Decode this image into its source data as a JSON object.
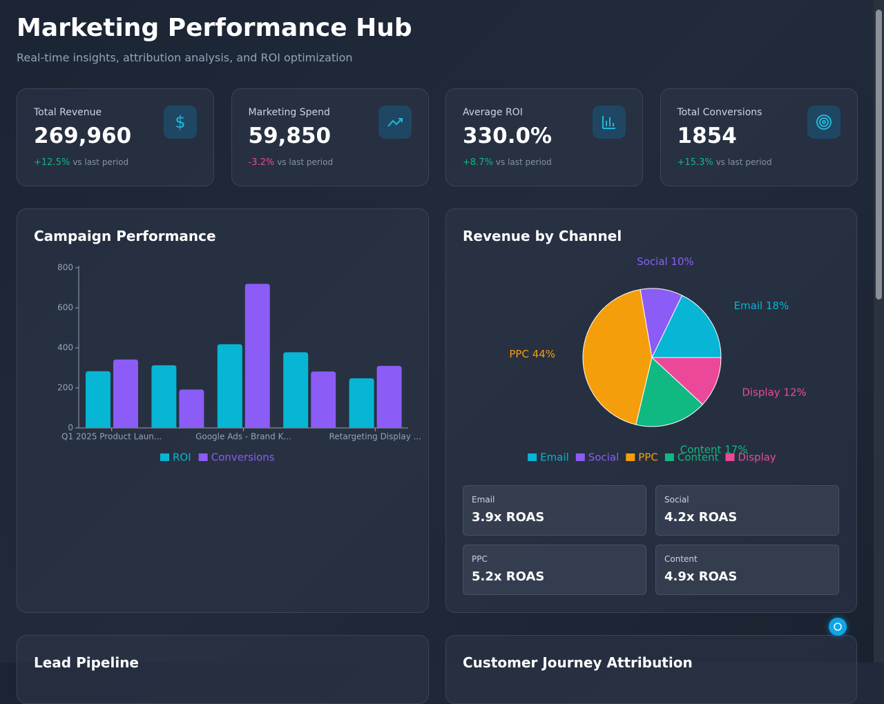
{
  "header": {
    "title": "Marketing Performance Hub",
    "subtitle": "Real-time insights, attribution analysis, and ROI optimization"
  },
  "kpis": [
    {
      "label": "Total Revenue",
      "value": "269,960",
      "change": "+12.5%",
      "note": "vs last period",
      "trend": "up"
    },
    {
      "label": "Marketing Spend",
      "value": "59,850",
      "change": "-3.2%",
      "note": "vs last period",
      "trend": "down"
    },
    {
      "label": "Average ROI",
      "value": "330.0%",
      "change": "+8.7%",
      "note": "vs last period",
      "trend": "up"
    },
    {
      "label": "Total Conversions",
      "value": "1854",
      "change": "+15.3%",
      "note": "vs last period",
      "trend": "up"
    }
  ],
  "chart_data": [
    {
      "type": "bar",
      "title": "Campaign Performance",
      "categories": [
        "Q1 2025 Product Laun...",
        null,
        "Google Ads - Brand K...",
        null,
        "Retargeting Display ..."
      ],
      "series": [
        {
          "name": "ROI",
          "color": "#06b6d4",
          "values": [
            283,
            313,
            418,
            378,
            248
          ]
        },
        {
          "name": "Conversions",
          "color": "#8b5cf6",
          "values": [
            342,
            192,
            720,
            282,
            310
          ]
        }
      ],
      "ylim": [
        0,
        800
      ],
      "yticks": [
        0,
        200,
        400,
        600,
        800
      ],
      "grid": false,
      "legend": "bottom"
    },
    {
      "type": "pie",
      "title": "Revenue by Channel",
      "categories": [
        "Email",
        "Social",
        "PPC",
        "Content",
        "Display"
      ],
      "values": [
        18,
        10,
        44,
        17,
        12
      ],
      "value_labels": [
        "Email 18%",
        "Social 10%",
        "PPC 44%",
        "Content 17%",
        "Display 12%"
      ],
      "colors": [
        "#06b6d4",
        "#8b5cf6",
        "#f59e0b",
        "#10b981",
        "#ec4899"
      ],
      "legend": "bottom"
    }
  ],
  "roas": [
    {
      "channel": "Email",
      "value": "3.9x ROAS"
    },
    {
      "channel": "Social",
      "value": "4.2x ROAS"
    },
    {
      "channel": "PPC",
      "value": "5.2x ROAS"
    },
    {
      "channel": "Content",
      "value": "4.9x ROAS"
    }
  ],
  "sections": [
    "Lead Pipeline",
    "Customer Journey Attribution"
  ]
}
